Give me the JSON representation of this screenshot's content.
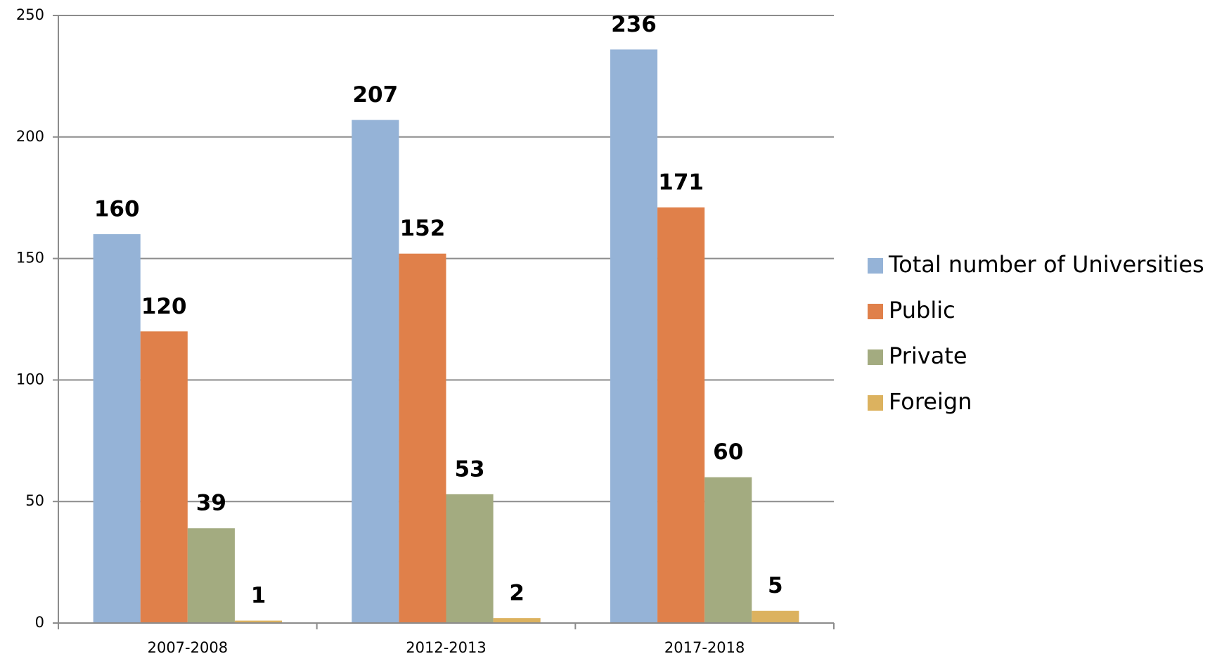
{
  "chart_data": {
    "type": "bar",
    "categories": [
      "2007-2008",
      "2012-2013",
      "2017-2018"
    ],
    "series": [
      {
        "name": "Total number of Universities",
        "color": "#95b3d7",
        "values": [
          160,
          207,
          236
        ]
      },
      {
        "name": "Public",
        "color": "#e0804a",
        "values": [
          120,
          152,
          171
        ]
      },
      {
        "name": "Private",
        "color": "#a3ab80",
        "values": [
          39,
          53,
          60
        ]
      },
      {
        "name": "Foreign",
        "color": "#dcb25f",
        "values": [
          1,
          2,
          5
        ]
      }
    ],
    "ylim": [
      0,
      250
    ],
    "yticks": [
      0,
      50,
      100,
      150,
      200,
      250
    ],
    "grid": true,
    "legend": "right"
  }
}
